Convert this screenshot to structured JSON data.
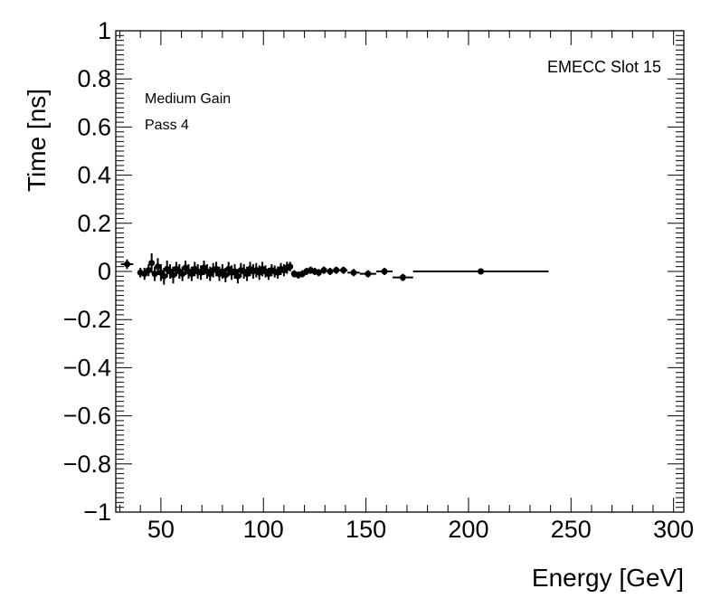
{
  "chart_data": {
    "type": "scatter",
    "title": "",
    "xlabel": "Energy [GeV]",
    "ylabel": "Time [ns]",
    "xlim": [
      28,
      305
    ],
    "ylim": [
      -1,
      1
    ],
    "xticks": [
      50,
      100,
      150,
      200,
      250,
      300
    ],
    "xtick_labels": [
      "50",
      "100",
      "150",
      "200",
      "250",
      "300"
    ],
    "yticks": [
      -1,
      -0.8,
      -0.6,
      -0.4,
      -0.2,
      0,
      0.2,
      0.4,
      0.6,
      0.8,
      1
    ],
    "ytick_labels": [
      "−1",
      "−0.8",
      "−0.6",
      "−0.4",
      "−0.2",
      "0",
      "0.2",
      "0.4",
      "0.6",
      "0.8",
      "1"
    ],
    "annotations": {
      "slot": "EMECC Slot 15",
      "gain": "Medium Gain",
      "pass": "Pass 4"
    },
    "grid": false,
    "points": [
      {
        "x": 33.5,
        "y": 0.03,
        "xerr": 3.0,
        "yerr": 0.02
      },
      {
        "x": 40.0,
        "y": -0.005,
        "xerr": 1.2,
        "yerr": 0.02
      },
      {
        "x": 42.0,
        "y": -0.01,
        "xerr": 1.0,
        "yerr": 0.025
      },
      {
        "x": 44.0,
        "y": 0.005,
        "xerr": 1.0,
        "yerr": 0.025
      },
      {
        "x": 45.5,
        "y": 0.035,
        "xerr": 0.8,
        "yerr": 0.04
      },
      {
        "x": 47.0,
        "y": -0.01,
        "xerr": 0.8,
        "yerr": 0.03
      },
      {
        "x": 48.5,
        "y": 0.02,
        "xerr": 0.8,
        "yerr": 0.035
      },
      {
        "x": 50.0,
        "y": -0.005,
        "xerr": 0.7,
        "yerr": 0.035
      },
      {
        "x": 51.5,
        "y": -0.02,
        "xerr": 0.7,
        "yerr": 0.035
      },
      {
        "x": 53.0,
        "y": 0.01,
        "xerr": 0.7,
        "yerr": 0.035
      },
      {
        "x": 54.5,
        "y": 0.0,
        "xerr": 0.7,
        "yerr": 0.03
      },
      {
        "x": 56.0,
        "y": -0.015,
        "xerr": 0.7,
        "yerr": 0.035
      },
      {
        "x": 57.5,
        "y": 0.01,
        "xerr": 0.7,
        "yerr": 0.03
      },
      {
        "x": 59.0,
        "y": 0.0,
        "xerr": 0.7,
        "yerr": 0.03
      },
      {
        "x": 60.5,
        "y": -0.01,
        "xerr": 0.7,
        "yerr": 0.03
      },
      {
        "x": 62.0,
        "y": 0.015,
        "xerr": 0.7,
        "yerr": 0.03
      },
      {
        "x": 63.5,
        "y": 0.0,
        "xerr": 0.7,
        "yerr": 0.03
      },
      {
        "x": 65.0,
        "y": -0.01,
        "xerr": 0.7,
        "yerr": 0.03
      },
      {
        "x": 66.5,
        "y": 0.01,
        "xerr": 0.7,
        "yerr": 0.03
      },
      {
        "x": 68.0,
        "y": 0.0,
        "xerr": 0.7,
        "yerr": 0.03
      },
      {
        "x": 69.5,
        "y": -0.005,
        "xerr": 0.7,
        "yerr": 0.03
      },
      {
        "x": 71.0,
        "y": 0.015,
        "xerr": 0.7,
        "yerr": 0.03
      },
      {
        "x": 72.5,
        "y": 0.0,
        "xerr": 0.7,
        "yerr": 0.03
      },
      {
        "x": 74.0,
        "y": -0.01,
        "xerr": 0.7,
        "yerr": 0.03
      },
      {
        "x": 75.5,
        "y": 0.005,
        "xerr": 0.7,
        "yerr": 0.03
      },
      {
        "x": 77.0,
        "y": 0.01,
        "xerr": 0.7,
        "yerr": 0.03
      },
      {
        "x": 78.5,
        "y": -0.01,
        "xerr": 0.7,
        "yerr": 0.03
      },
      {
        "x": 80.0,
        "y": 0.0,
        "xerr": 0.7,
        "yerr": 0.03
      },
      {
        "x": 81.5,
        "y": -0.015,
        "xerr": 0.7,
        "yerr": 0.03
      },
      {
        "x": 83.0,
        "y": 0.01,
        "xerr": 0.7,
        "yerr": 0.03
      },
      {
        "x": 84.5,
        "y": -0.005,
        "xerr": 0.7,
        "yerr": 0.03
      },
      {
        "x": 86.0,
        "y": 0.0,
        "xerr": 0.7,
        "yerr": 0.03
      },
      {
        "x": 87.5,
        "y": -0.02,
        "xerr": 0.7,
        "yerr": 0.03
      },
      {
        "x": 89.0,
        "y": 0.005,
        "xerr": 0.7,
        "yerr": 0.03
      },
      {
        "x": 90.5,
        "y": 0.0,
        "xerr": 0.7,
        "yerr": 0.03
      },
      {
        "x": 92.0,
        "y": -0.01,
        "xerr": 0.7,
        "yerr": 0.03
      },
      {
        "x": 93.5,
        "y": 0.01,
        "xerr": 0.7,
        "yerr": 0.03
      },
      {
        "x": 95.0,
        "y": 0.0,
        "xerr": 0.7,
        "yerr": 0.03
      },
      {
        "x": 96.5,
        "y": 0.005,
        "xerr": 0.7,
        "yerr": 0.03
      },
      {
        "x": 98.0,
        "y": -0.005,
        "xerr": 0.7,
        "yerr": 0.03
      },
      {
        "x": 99.5,
        "y": 0.01,
        "xerr": 0.7,
        "yerr": 0.03
      },
      {
        "x": 101.0,
        "y": 0.0,
        "xerr": 0.7,
        "yerr": 0.025
      },
      {
        "x": 102.5,
        "y": -0.01,
        "xerr": 0.7,
        "yerr": 0.025
      },
      {
        "x": 104.0,
        "y": 0.005,
        "xerr": 0.7,
        "yerr": 0.025
      },
      {
        "x": 105.5,
        "y": 0.0,
        "xerr": 0.7,
        "yerr": 0.025
      },
      {
        "x": 107.0,
        "y": -0.005,
        "xerr": 0.7,
        "yerr": 0.025
      },
      {
        "x": 108.5,
        "y": 0.01,
        "xerr": 0.7,
        "yerr": 0.025
      },
      {
        "x": 110.0,
        "y": 0.005,
        "xerr": 0.7,
        "yerr": 0.025
      },
      {
        "x": 111.5,
        "y": 0.015,
        "xerr": 0.7,
        "yerr": 0.025
      },
      {
        "x": 113.0,
        "y": 0.02,
        "xerr": 0.8,
        "yerr": 0.02
      },
      {
        "x": 115.0,
        "y": -0.01,
        "xerr": 1.0,
        "yerr": 0.015
      },
      {
        "x": 117.0,
        "y": -0.015,
        "xerr": 1.0,
        "yerr": 0.015
      },
      {
        "x": 119.0,
        "y": -0.01,
        "xerr": 1.0,
        "yerr": 0.015
      },
      {
        "x": 121.0,
        "y": 0.0,
        "xerr": 1.0,
        "yerr": 0.015
      },
      {
        "x": 123.0,
        "y": 0.005,
        "xerr": 1.0,
        "yerr": 0.015
      },
      {
        "x": 125.0,
        "y": 0.0,
        "xerr": 1.0,
        "yerr": 0.015
      },
      {
        "x": 127.0,
        "y": -0.005,
        "xerr": 1.0,
        "yerr": 0.015
      },
      {
        "x": 129.5,
        "y": 0.005,
        "xerr": 1.5,
        "yerr": 0.015
      },
      {
        "x": 132.5,
        "y": 0.0,
        "xerr": 1.5,
        "yerr": 0.015
      },
      {
        "x": 135.5,
        "y": 0.005,
        "xerr": 1.5,
        "yerr": 0.015
      },
      {
        "x": 139.0,
        "y": 0.005,
        "xerr": 2.0,
        "yerr": 0.015
      },
      {
        "x": 144.0,
        "y": -0.005,
        "xerr": 3.0,
        "yerr": 0.015
      },
      {
        "x": 151.0,
        "y": -0.01,
        "xerr": 4.0,
        "yerr": 0.015
      },
      {
        "x": 159.0,
        "y": 0.0,
        "xerr": 4.0,
        "yerr": 0.015
      },
      {
        "x": 168.0,
        "y": -0.025,
        "xerr": 5.0,
        "yerr": 0.015
      },
      {
        "x": 206.0,
        "y": 0.0,
        "xerr": 33.0,
        "yerr": 0.01
      }
    ]
  }
}
